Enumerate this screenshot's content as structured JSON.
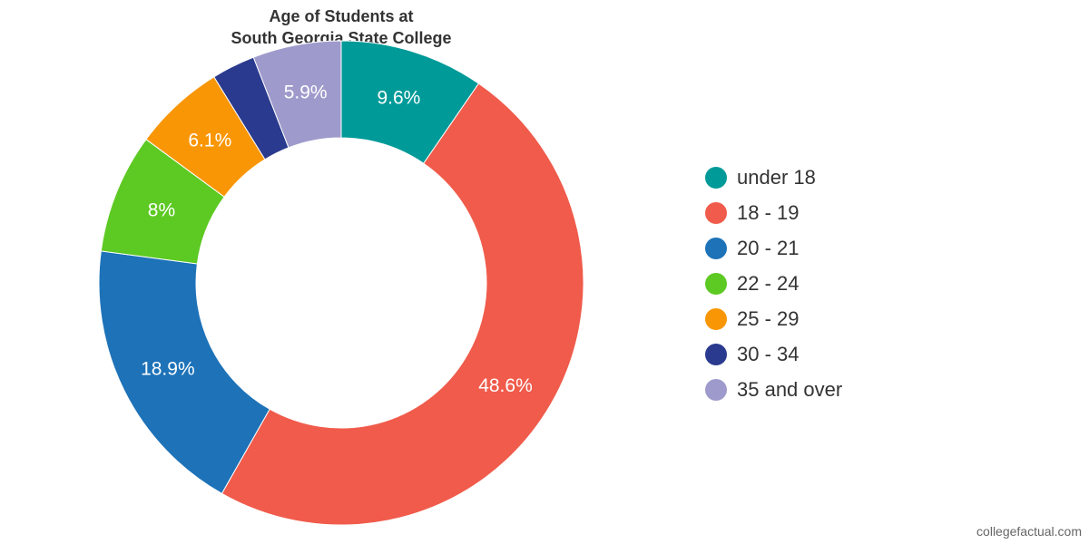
{
  "chart_data": {
    "type": "pie",
    "title_lines": [
      "Age of Students at",
      "South Georgia State College"
    ],
    "categories": [
      "under 18",
      "18 - 19",
      "20 - 21",
      "22 - 24",
      "25 - 29",
      "30 - 34",
      "35 and over"
    ],
    "values": [
      9.6,
      48.6,
      18.9,
      8,
      6.1,
      2.9,
      5.9
    ],
    "value_labels": [
      "9.6%",
      "48.6%",
      "18.9%",
      "8%",
      "6.1%",
      "",
      "5.9%"
    ],
    "colors": [
      "#009a98",
      "#f05b4b",
      "#1d72b8",
      "#5dc923",
      "#f99605",
      "#2a3a8e",
      "#9e9bcc"
    ],
    "donut": true,
    "legend_position": "right"
  },
  "credit": "collegefactual.com"
}
